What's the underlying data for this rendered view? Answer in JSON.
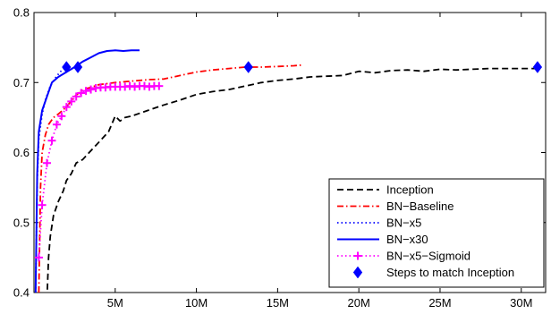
{
  "chart_data": {
    "type": "line",
    "title": "",
    "xlabel": "",
    "ylabel": "",
    "xlim": [
      0,
      31500000
    ],
    "ylim": [
      0.4,
      0.8
    ],
    "grid": false,
    "legend_position": "bottom-right",
    "x_ticks": [
      {
        "value": 5000000,
        "label": "5M"
      },
      {
        "value": 10000000,
        "label": "10M"
      },
      {
        "value": 15000000,
        "label": "15M"
      },
      {
        "value": 20000000,
        "label": "20M"
      },
      {
        "value": 25000000,
        "label": "25M"
      },
      {
        "value": 30000000,
        "label": "30M"
      }
    ],
    "y_ticks": [
      {
        "value": 0.4,
        "label": "0.4"
      },
      {
        "value": 0.5,
        "label": "0.5"
      },
      {
        "value": 0.6,
        "label": "0.6"
      },
      {
        "value": 0.7,
        "label": "0.7"
      },
      {
        "value": 0.8,
        "label": "0.8"
      }
    ],
    "series": [
      {
        "name": "Inception",
        "color": "#000000",
        "style": "dashed",
        "marker": "none",
        "x": [
          800000,
          900000,
          1000000,
          1200000,
          1500000,
          1800000,
          2000000,
          2300000,
          2600000,
          3000000,
          3400000,
          3800000,
          4200000,
          4600000,
          5000000,
          5300000,
          5600000,
          6000000,
          7000000,
          8000000,
          9000000,
          10000000,
          11000000,
          12000000,
          13000000,
          14000000,
          15000000,
          16000000,
          17000000,
          18000000,
          19000000,
          20000000,
          21000000,
          22000000,
          23000000,
          24000000,
          25000000,
          26000000,
          27000000,
          28000000,
          29000000,
          30000000,
          31000000
        ],
        "y": [
          0.39,
          0.45,
          0.48,
          0.51,
          0.53,
          0.545,
          0.56,
          0.57,
          0.585,
          0.59,
          0.6,
          0.61,
          0.62,
          0.63,
          0.652,
          0.645,
          0.65,
          0.652,
          0.66,
          0.668,
          0.675,
          0.683,
          0.687,
          0.69,
          0.695,
          0.7,
          0.703,
          0.705,
          0.708,
          0.709,
          0.71,
          0.716,
          0.714,
          0.717,
          0.718,
          0.716,
          0.719,
          0.718,
          0.719,
          0.72,
          0.72,
          0.72,
          0.72
        ]
      },
      {
        "name": "BN−Baseline",
        "color": "#ff0000",
        "style": "dashdot",
        "marker": "none",
        "x": [
          300000,
          400000,
          500000,
          700000,
          900000,
          1200000,
          1500000,
          2000000,
          2500000,
          3000000,
          3500000,
          4000000,
          5000000,
          6000000,
          7000000,
          8000000,
          9000000,
          10000000,
          11000000,
          12000000,
          13000000,
          14000000,
          15000000,
          16000000,
          16500000
        ],
        "y": [
          0.4,
          0.55,
          0.6,
          0.625,
          0.64,
          0.65,
          0.655,
          0.665,
          0.68,
          0.69,
          0.693,
          0.697,
          0.7,
          0.702,
          0.704,
          0.705,
          0.71,
          0.715,
          0.718,
          0.72,
          0.722,
          0.722,
          0.723,
          0.724,
          0.725
        ]
      },
      {
        "name": "BN−x5",
        "color": "#0000ff",
        "style": "dotted",
        "marker": "none",
        "x": [
          100000,
          200000,
          300000,
          500000,
          700000,
          1000000,
          1300000,
          1600000,
          2000000
        ],
        "y": [
          0.4,
          0.56,
          0.62,
          0.655,
          0.675,
          0.695,
          0.706,
          0.715,
          0.723
        ]
      },
      {
        "name": "BN−x30",
        "color": "#0000ff",
        "style": "solid",
        "marker": "none",
        "x": [
          100000,
          200000,
          300000,
          500000,
          800000,
          1100000,
          1500000,
          2000000,
          2500000,
          3000000,
          3500000,
          4000000,
          4500000,
          5000000,
          5500000,
          6000000,
          6500000
        ],
        "y": [
          0.4,
          0.57,
          0.63,
          0.66,
          0.68,
          0.7,
          0.708,
          0.715,
          0.722,
          0.73,
          0.736,
          0.742,
          0.745,
          0.746,
          0.745,
          0.746,
          0.746
        ]
      },
      {
        "name": "BN−x5−Sigmoid",
        "color": "#ff00ff",
        "style": "dotted",
        "marker": "plus",
        "x": [
          300000,
          500000,
          800000,
          1100000,
          1400000,
          1700000,
          2000000,
          2300000,
          2600000,
          2900000,
          3200000,
          3500000,
          3800000,
          4100000,
          4400000,
          4700000,
          5000000,
          5300000,
          5600000,
          5900000,
          6200000,
          6500000,
          6800000,
          7100000,
          7400000,
          7700000
        ],
        "y": [
          0.45,
          0.525,
          0.585,
          0.617,
          0.64,
          0.652,
          0.665,
          0.673,
          0.68,
          0.685,
          0.688,
          0.69,
          0.692,
          0.693,
          0.693,
          0.694,
          0.694,
          0.694,
          0.694,
          0.695,
          0.694,
          0.695,
          0.695,
          0.694,
          0.695,
          0.695
        ]
      }
    ],
    "match_points": {
      "name": "Steps to match Inception",
      "color": "#0000ff",
      "marker": "diamond",
      "x": [
        2000000,
        2700000,
        13200000,
        31000000
      ],
      "y": [
        0.722,
        0.722,
        0.722,
        0.722
      ]
    }
  }
}
